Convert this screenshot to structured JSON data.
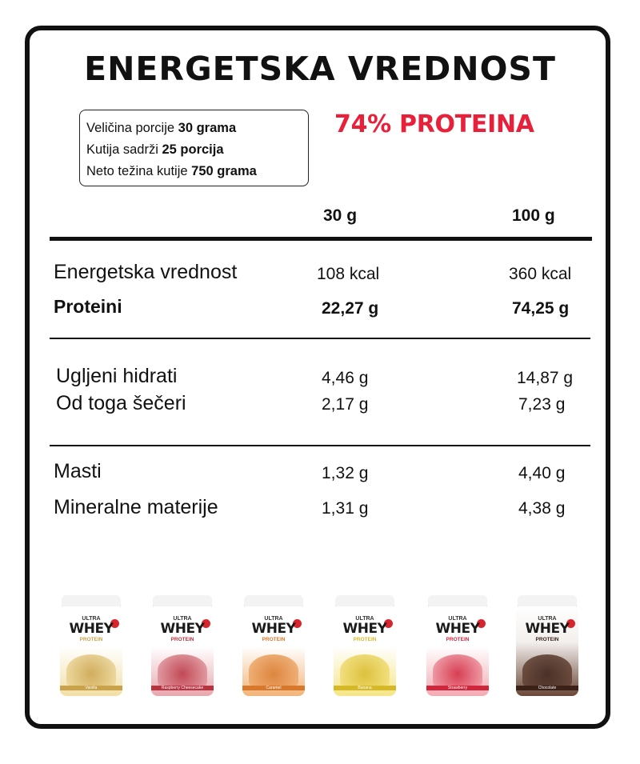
{
  "title": "ENERGETSKA VREDNOST",
  "info": {
    "line1_prefix": "Veličina porcije ",
    "line1_value": "30 grama",
    "line2_prefix": "Kutija sadrži ",
    "line2_value": "25 porcija",
    "line3_prefix": "Neto težina kutije ",
    "line3_value": "750 grama"
  },
  "protein_highlight": "74% PROTEINA",
  "columns": {
    "col1": "30 g",
    "col2": "100 g"
  },
  "rows": [
    {
      "label": "Energetska vrednost",
      "v30": "108 kcal",
      "v100": "360 kcal"
    },
    {
      "label": "Proteini",
      "v30": "22,27 g",
      "v100": "74,25 g"
    },
    {
      "label": "Ugljeni hidrati",
      "v30": "4,46 g",
      "v100": "14,87 g"
    },
    {
      "label": "Od toga šečeri",
      "v30": "2,17 g",
      "v100": "7,23 g"
    },
    {
      "label": "Masti",
      "v30": "1,32 g",
      "v100": "4,40 g"
    },
    {
      "label": "Mineralne materije",
      "v30": "1,31 g",
      "v100": "4,38 g"
    }
  ],
  "products": [
    {
      "brand": "ULTRA",
      "name": "WHEY",
      "sub": "PROTEIN",
      "flavor": "Vanilla",
      "color": "#f2dfa6",
      "accent": "#c9a24a"
    },
    {
      "brand": "ULTRA",
      "name": "WHEY",
      "sub": "PROTEIN",
      "flavor": "Raspberry Cheesecake",
      "color": "#e7a7ad",
      "accent": "#b8323f"
    },
    {
      "brand": "ULTRA",
      "name": "WHEY",
      "sub": "PROTEIN",
      "flavor": "Caramel",
      "color": "#f2b479",
      "accent": "#d9782a"
    },
    {
      "brand": "ULTRA",
      "name": "WHEY",
      "sub": "PROTEIN",
      "flavor": "Banana",
      "color": "#f6e586",
      "accent": "#d7b927"
    },
    {
      "brand": "ULTRA",
      "name": "WHEY",
      "sub": "PROTEIN",
      "flavor": "Strawberry",
      "color": "#f3a9b2",
      "accent": "#d1253c"
    },
    {
      "brand": "ULTRA",
      "name": "WHEY",
      "sub": "PROTEIN",
      "flavor": "Chocolate",
      "color": "#6b4738",
      "accent": "#3a2219"
    }
  ],
  "colors": {
    "highlight": "#e8203a",
    "text": "#111111",
    "border": "#111111"
  }
}
